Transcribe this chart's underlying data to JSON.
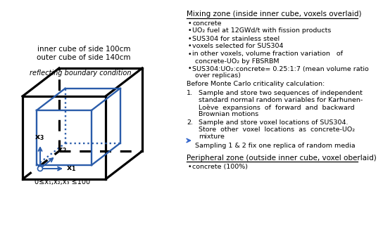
{
  "title_left_line1": "inner cube of side 100cm",
  "title_left_line2": "outer cube of side 140cm",
  "reflecting_label": "reflecting boundary condition",
  "axis_label": "0≤x₁,x₂,x₃ ≤100",
  "right_title": "Mixing zone (inside inner cube, voxels overlaid)",
  "bullet1": "concrete",
  "bullet2_p1": "UO",
  "bullet2_sub": "2",
  "bullet2_p2": " fuel at 12GWd/t with fission products",
  "bullet3": "SUS304 for stainless steel",
  "bullet4": "voxels selected for SUS304",
  "bullet5_p1": "in other voxels, volume fraction variation   of",
  "bullet5_p2": "concrete-UO",
  "bullet5_sub": "2",
  "bullet5_p3": " by FBSRBM",
  "bullet6_p1": "SUS304:UO",
  "bullet6_sub": "2",
  "bullet6_p2": ":concrete= 0.25:1:7 (mean volume ratio",
  "bullet6_p3": "over replicas)",
  "before_mc": "Before Monte Carlo criticality calculation:",
  "num1_l1": "Sample and store two sequences of independent",
  "num1_l2": "standard normal random variables for Karhunen-",
  "num1_l3": "Loève  expansions  of  forward  and  backward",
  "num1_l4": "Brownian motions",
  "num2_l1": "Sample and store voxel locations of SUS304.",
  "num2_l2": "Store  other  voxel  locations  as  concrete-UO",
  "num2_sub": "2",
  "num2_l3": "mixture",
  "arrow_text": "Sampling 1 & 2 fix one replica of random media",
  "peripheral_title": "Peripheral zone (outside inner cube, voxel oberlaid)",
  "peripheral_bullet": "concrete (100%)",
  "outer_cube_color": "#000000",
  "inner_cube_color": "#2a5caa",
  "background_color": "#ffffff"
}
